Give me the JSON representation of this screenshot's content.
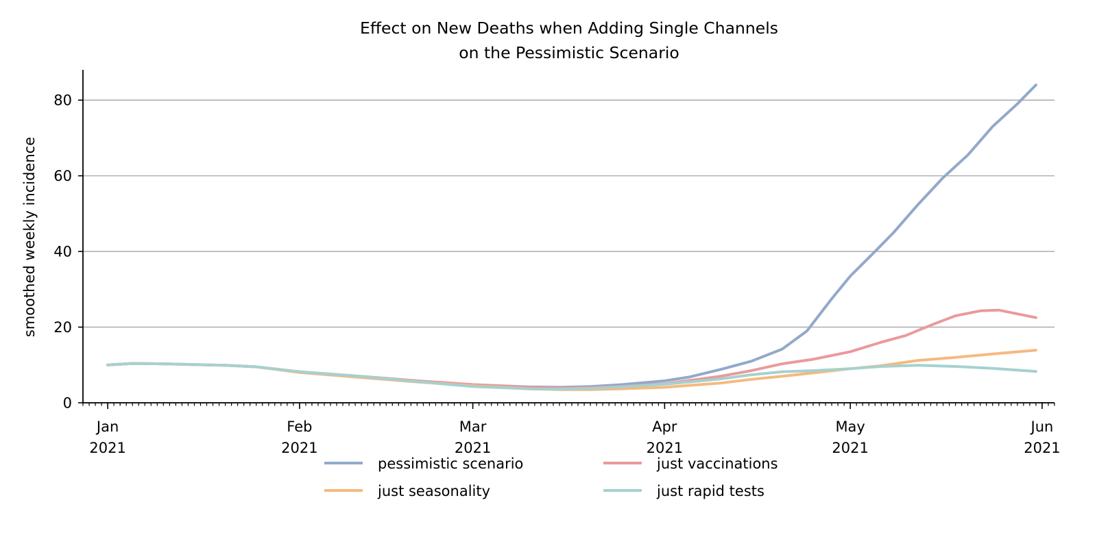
{
  "chart_data": {
    "type": "line",
    "title_lines": [
      "Effect on New Deaths when Adding Single Channels",
      "on the Pessimistic Scenario"
    ],
    "ylabel": "smoothed weekly incidence",
    "xlabel": "",
    "ylim": [
      0,
      88
    ],
    "xlim": [
      "2020-12-28",
      "2021-06-03"
    ],
    "yticks": [
      0,
      20,
      40,
      60,
      80
    ],
    "xticks": [
      {
        "date": "2021-01-01",
        "month": "Jan",
        "year": "2021"
      },
      {
        "date": "2021-02-01",
        "month": "Feb",
        "year": "2021"
      },
      {
        "date": "2021-03-01",
        "month": "Mar",
        "year": "2021"
      },
      {
        "date": "2021-04-01",
        "month": "Apr",
        "year": "2021"
      },
      {
        "date": "2021-05-01",
        "month": "May",
        "year": "2021"
      },
      {
        "date": "2021-06-01",
        "month": "Jun",
        "year": "2021"
      }
    ],
    "grid": "horizontal",
    "legend_position": "bottom-center",
    "series": [
      {
        "name": "pessimistic scenario",
        "color": "#92a9c9",
        "points": [
          [
            "2021-01-01",
            10
          ],
          [
            "2021-01-05",
            10.4
          ],
          [
            "2021-01-10",
            10.3
          ],
          [
            "2021-01-15",
            10.1
          ],
          [
            "2021-01-20",
            9.9
          ],
          [
            "2021-01-25",
            9.5
          ],
          [
            "2021-02-01",
            8.2
          ],
          [
            "2021-02-10",
            7.1
          ],
          [
            "2021-02-20",
            5.8
          ],
          [
            "2021-03-01",
            4.8
          ],
          [
            "2021-03-10",
            4.2
          ],
          [
            "2021-03-15",
            4.1
          ],
          [
            "2021-03-20",
            4.3
          ],
          [
            "2021-03-25",
            4.8
          ],
          [
            "2021-04-01",
            5.8
          ],
          [
            "2021-04-05",
            6.8
          ],
          [
            "2021-04-10",
            8.8
          ],
          [
            "2021-04-15",
            11
          ],
          [
            "2021-04-20",
            14.2
          ],
          [
            "2021-04-24",
            19
          ],
          [
            "2021-04-28",
            27.5
          ],
          [
            "2021-05-01",
            33.5
          ],
          [
            "2021-05-05",
            40
          ],
          [
            "2021-05-08",
            45
          ],
          [
            "2021-05-12",
            52.5
          ],
          [
            "2021-05-16",
            59.5
          ],
          [
            "2021-05-20",
            65.5
          ],
          [
            "2021-05-24",
            73
          ],
          [
            "2021-05-28",
            79
          ],
          [
            "2021-05-31",
            84
          ]
        ]
      },
      {
        "name": "just vaccinations",
        "color": "#ea9a9c",
        "points": [
          [
            "2021-01-01",
            10
          ],
          [
            "2021-01-05",
            10.4
          ],
          [
            "2021-01-10",
            10.3
          ],
          [
            "2021-01-15",
            10.1
          ],
          [
            "2021-01-20",
            9.9
          ],
          [
            "2021-01-25",
            9.5
          ],
          [
            "2021-02-01",
            8.2
          ],
          [
            "2021-02-10",
            7.1
          ],
          [
            "2021-02-20",
            5.8
          ],
          [
            "2021-03-01",
            4.8
          ],
          [
            "2021-03-10",
            4.1
          ],
          [
            "2021-03-15",
            3.9
          ],
          [
            "2021-03-20",
            4.0
          ],
          [
            "2021-03-25",
            4.3
          ],
          [
            "2021-04-01",
            5.0
          ],
          [
            "2021-04-05",
            5.9
          ],
          [
            "2021-04-10",
            7.0
          ],
          [
            "2021-04-15",
            8.5
          ],
          [
            "2021-04-20",
            10.3
          ],
          [
            "2021-04-25",
            11.5
          ],
          [
            "2021-05-01",
            13.5
          ],
          [
            "2021-05-06",
            16
          ],
          [
            "2021-05-10",
            17.8
          ],
          [
            "2021-05-14",
            20.5
          ],
          [
            "2021-05-18",
            23
          ],
          [
            "2021-05-22",
            24.3
          ],
          [
            "2021-05-25",
            24.5
          ],
          [
            "2021-05-28",
            23.5
          ],
          [
            "2021-05-31",
            22.5
          ]
        ]
      },
      {
        "name": "just seasonality",
        "color": "#f6b97f",
        "points": [
          [
            "2021-01-01",
            10
          ],
          [
            "2021-01-05",
            10.4
          ],
          [
            "2021-01-10",
            10.3
          ],
          [
            "2021-01-15",
            10.1
          ],
          [
            "2021-01-20",
            9.9
          ],
          [
            "2021-01-25",
            9.5
          ],
          [
            "2021-02-01",
            8.0
          ],
          [
            "2021-02-10",
            6.8
          ],
          [
            "2021-02-20",
            5.5
          ],
          [
            "2021-03-01",
            4.5
          ],
          [
            "2021-03-10",
            3.7
          ],
          [
            "2021-03-15",
            3.5
          ],
          [
            "2021-03-20",
            3.5
          ],
          [
            "2021-03-25",
            3.7
          ],
          [
            "2021-04-01",
            4.1
          ],
          [
            "2021-04-05",
            4.6
          ],
          [
            "2021-04-10",
            5.2
          ],
          [
            "2021-04-15",
            6.2
          ],
          [
            "2021-04-20",
            7.0
          ],
          [
            "2021-04-25",
            7.9
          ],
          [
            "2021-05-01",
            9.0
          ],
          [
            "2021-05-06",
            9.8
          ],
          [
            "2021-05-12",
            11.2
          ],
          [
            "2021-05-18",
            12
          ],
          [
            "2021-05-24",
            12.9
          ],
          [
            "2021-05-31",
            13.9
          ]
        ]
      },
      {
        "name": "just rapid tests",
        "color": "#a6d1ce",
        "points": [
          [
            "2021-01-01",
            10
          ],
          [
            "2021-01-05",
            10.4
          ],
          [
            "2021-01-10",
            10.3
          ],
          [
            "2021-01-15",
            10.1
          ],
          [
            "2021-01-20",
            9.9
          ],
          [
            "2021-01-25",
            9.5
          ],
          [
            "2021-02-01",
            8.2
          ],
          [
            "2021-02-10",
            7.1
          ],
          [
            "2021-02-20",
            5.6
          ],
          [
            "2021-03-01",
            4.3
          ],
          [
            "2021-03-10",
            3.7
          ],
          [
            "2021-03-15",
            3.6
          ],
          [
            "2021-03-20",
            3.8
          ],
          [
            "2021-03-25",
            4.2
          ],
          [
            "2021-04-01",
            4.9
          ],
          [
            "2021-04-05",
            5.5
          ],
          [
            "2021-04-10",
            6.3
          ],
          [
            "2021-04-15",
            7.4
          ],
          [
            "2021-04-20",
            8.2
          ],
          [
            "2021-04-25",
            8.5
          ],
          [
            "2021-05-01",
            9.0
          ],
          [
            "2021-05-06",
            9.6
          ],
          [
            "2021-05-12",
            9.9
          ],
          [
            "2021-05-18",
            9.6
          ],
          [
            "2021-05-24",
            9.1
          ],
          [
            "2021-05-31",
            8.3
          ]
        ]
      }
    ],
    "legend_order": [
      0,
      1,
      2,
      3
    ]
  }
}
